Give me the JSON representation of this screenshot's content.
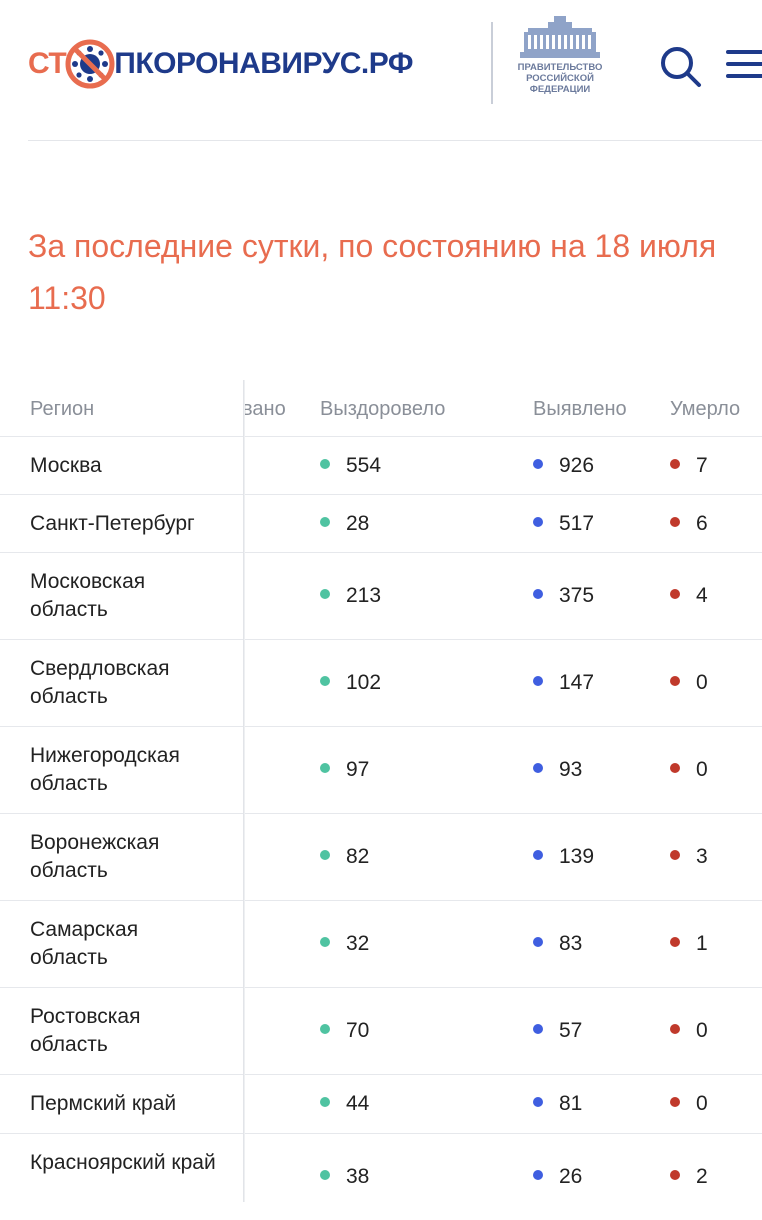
{
  "header": {
    "logo": {
      "part1": "СТ",
      "part2": "ПКОРОНАВИРУС.РФ"
    },
    "gov_label": {
      "line1": "ПРАВИТЕЛЬСТВО",
      "line2": "РОССИЙСКОЙ",
      "line3": "ФЕДЕРАЦИИ"
    }
  },
  "title": {
    "line1": "За последние сутки, по состоянию на 18 июля",
    "line2": "11:30"
  },
  "table": {
    "headers": {
      "region": "Регион",
      "hidden": "вано",
      "recovered": "Выздоровело",
      "detected": "Выявлено",
      "died": "Умерло"
    },
    "rows": [
      {
        "region": "Москва",
        "recovered": "554",
        "detected": "926",
        "died": "7"
      },
      {
        "region": "Санкт-Петербург",
        "recovered": "28",
        "detected": "517",
        "died": "6"
      },
      {
        "region": "Московская область",
        "recovered": "213",
        "detected": "375",
        "died": "4"
      },
      {
        "region": "Свердловская область",
        "recovered": "102",
        "detected": "147",
        "died": "0"
      },
      {
        "region": "Нижегородская область",
        "recovered": "97",
        "detected": "93",
        "died": "0"
      },
      {
        "region": "Воронежская область",
        "recovered": "82",
        "detected": "139",
        "died": "3"
      },
      {
        "region": "Самарская область",
        "recovered": "32",
        "detected": "83",
        "died": "1"
      },
      {
        "region": "Ростовская область",
        "recovered": "70",
        "detected": "57",
        "died": "0"
      },
      {
        "region": "Пермский край",
        "recovered": "44",
        "detected": "81",
        "died": "0"
      },
      {
        "region": "Красноярский край",
        "recovered": "38",
        "detected": "26",
        "died": "2"
      }
    ]
  },
  "colors": {
    "accent": "#e86c4f",
    "brand": "#1e3a8a",
    "recovered": "#4fc3a1",
    "detected": "#3f5ee0",
    "died": "#c0392b"
  },
  "icons": {
    "logo_o": "virus-stop-icon",
    "gov": "government-building-icon",
    "search": "search-icon",
    "menu": "hamburger-menu-icon"
  }
}
